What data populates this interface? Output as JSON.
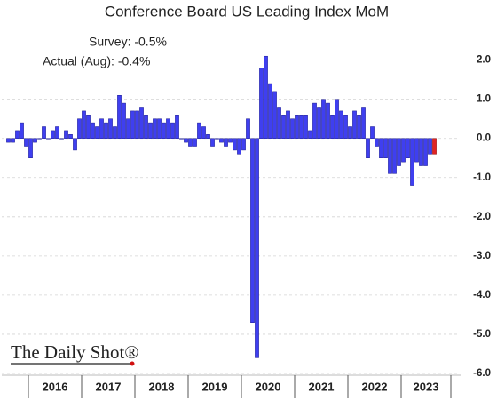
{
  "chart_data": {
    "type": "bar",
    "title": "Conference Board US Leading Index MoM",
    "annotations": [
      "Survey:  -0.5%",
      "Actual (Aug):  -0.4%"
    ],
    "source": "The Daily Shot®",
    "categories": [
      null,
      null,
      null,
      null,
      null,
      null,
      null,
      null,
      null,
      null,
      null,
      null,
      null,
      null,
      null,
      null,
      null,
      null,
      null,
      null,
      null,
      null,
      null,
      null,
      null,
      null,
      null,
      null,
      null,
      null,
      null,
      null,
      null,
      null,
      null,
      null,
      null,
      null,
      null,
      null,
      null,
      null,
      null,
      null,
      null,
      null,
      null,
      null,
      null,
      null,
      null,
      null,
      null,
      null,
      null,
      null,
      null,
      null,
      null,
      null,
      null,
      null,
      null,
      null,
      null,
      null,
      null,
      null,
      null,
      null,
      null,
      null,
      null,
      null,
      null,
      null,
      null,
      null,
      null,
      null,
      null,
      null,
      null,
      null,
      null,
      null,
      null,
      null,
      null,
      null,
      null,
      null,
      null,
      null,
      null,
      null,
      null
    ],
    "values": [
      -0.1,
      -0.1,
      0.2,
      0.4,
      -0.2,
      -0.5,
      -0.1,
      0.0,
      0.3,
      0.0,
      0.2,
      0.3,
      0.0,
      0.2,
      0.1,
      -0.3,
      0.5,
      0.7,
      0.6,
      0.4,
      0.3,
      0.5,
      0.4,
      0.5,
      0.3,
      1.1,
      0.9,
      0.5,
      0.7,
      0.7,
      0.8,
      0.6,
      0.4,
      0.5,
      0.5,
      0.4,
      0.5,
      0.4,
      0.6,
      0.0,
      -0.1,
      -0.2,
      -0.2,
      0.4,
      0.3,
      0.1,
      -0.2,
      0.0,
      -0.1,
      -0.2,
      -0.1,
      -0.3,
      -0.4,
      -0.3,
      0.5,
      -4.7,
      -5.6,
      1.8,
      2.1,
      1.4,
      1.2,
      0.8,
      0.6,
      0.7,
      0.5,
      0.6,
      0.6,
      0.6,
      0.2,
      0.9,
      0.8,
      1.0,
      0.9,
      0.6,
      1.0,
      0.7,
      0.6,
      0.3,
      0.7,
      0.6,
      0.8,
      -0.5,
      0.3,
      -0.2,
      -0.5,
      -0.5,
      -0.9,
      -0.9,
      -0.7,
      -0.6,
      -0.5,
      -1.2,
      -0.6,
      -0.7,
      -0.7,
      -0.4,
      -0.4
    ],
    "color": "#3f3ff0",
    "last_color": "#e02424",
    "year_labels": [
      "2016",
      "2017",
      "2018",
      "2019",
      "2020",
      "2021",
      "2022",
      "2023"
    ],
    "ylim": [
      -6,
      2.4
    ],
    "yticks": [
      {
        "value": 2,
        "label": "2.0"
      },
      {
        "value": 1,
        "label": "1.0"
      },
      {
        "value": 0,
        "label": "0.0"
      },
      {
        "value": -1,
        "label": "-1.0"
      },
      {
        "value": -2,
        "label": "-2.0"
      },
      {
        "value": -3,
        "label": "-3.0"
      },
      {
        "value": -4,
        "label": "-4.0"
      },
      {
        "value": -5,
        "label": "-5.0"
      },
      {
        "value": -6,
        "label": "-6.0"
      }
    ],
    "grid": true
  }
}
